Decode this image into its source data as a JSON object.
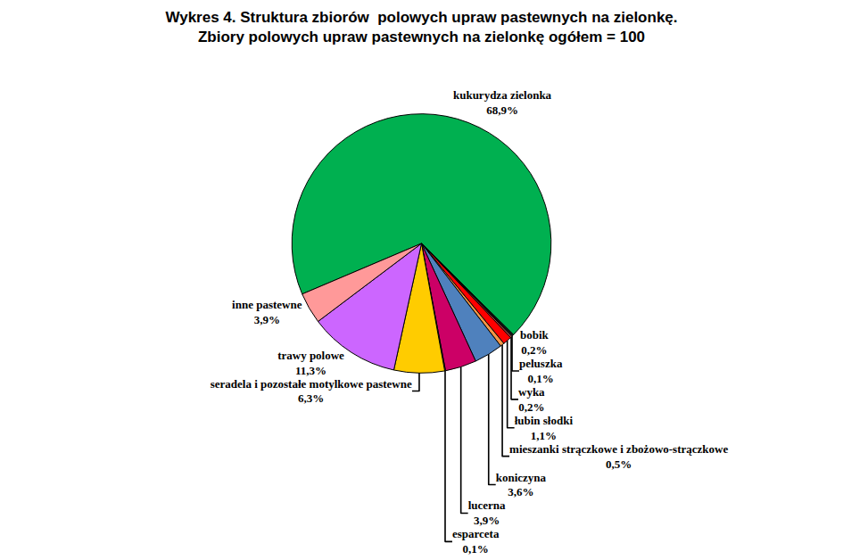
{
  "chart_data": {
    "type": "pie",
    "title": "Wykres 4. Struktura zbiorów  polowych upraw pastewnych na zielonkę.",
    "subtitle": "Zbiory polowych upraw pastewnych na zielonkę ogółem = 100",
    "categories": [
      "kukurydza zielonka",
      "bobik",
      "peluszka",
      "wyka",
      "łubin słodki",
      "mieszanki strączkowe i zbożowo-strączkowe",
      "koniczyna",
      "lucerna",
      "esparceta",
      "seradela i pozostałe motylkowe pastewne",
      "trawy polowe",
      "inne pastewne"
    ],
    "values": [
      68.9,
      0.2,
      0.1,
      0.2,
      1.1,
      0.5,
      3.6,
      3.9,
      0.1,
      6.3,
      11.3,
      3.9
    ],
    "value_labels": [
      "68,9%",
      "0,2%",
      "0,1%",
      "0,2%",
      "1,1%",
      "0,5%",
      "3,6%",
      "3,9%",
      "0,1%",
      "6,3%",
      "11,3%",
      "3,9%"
    ],
    "colors": [
      "#00b050",
      "#1a1a1a",
      "#7f7f7f",
      "#c0504d",
      "#ff0000",
      "#f79646",
      "#4f81bd",
      "#cc0066",
      "#9bbb59",
      "#ffcc00",
      "#cc66ff",
      "#ff9999"
    ],
    "data_labels": true
  }
}
